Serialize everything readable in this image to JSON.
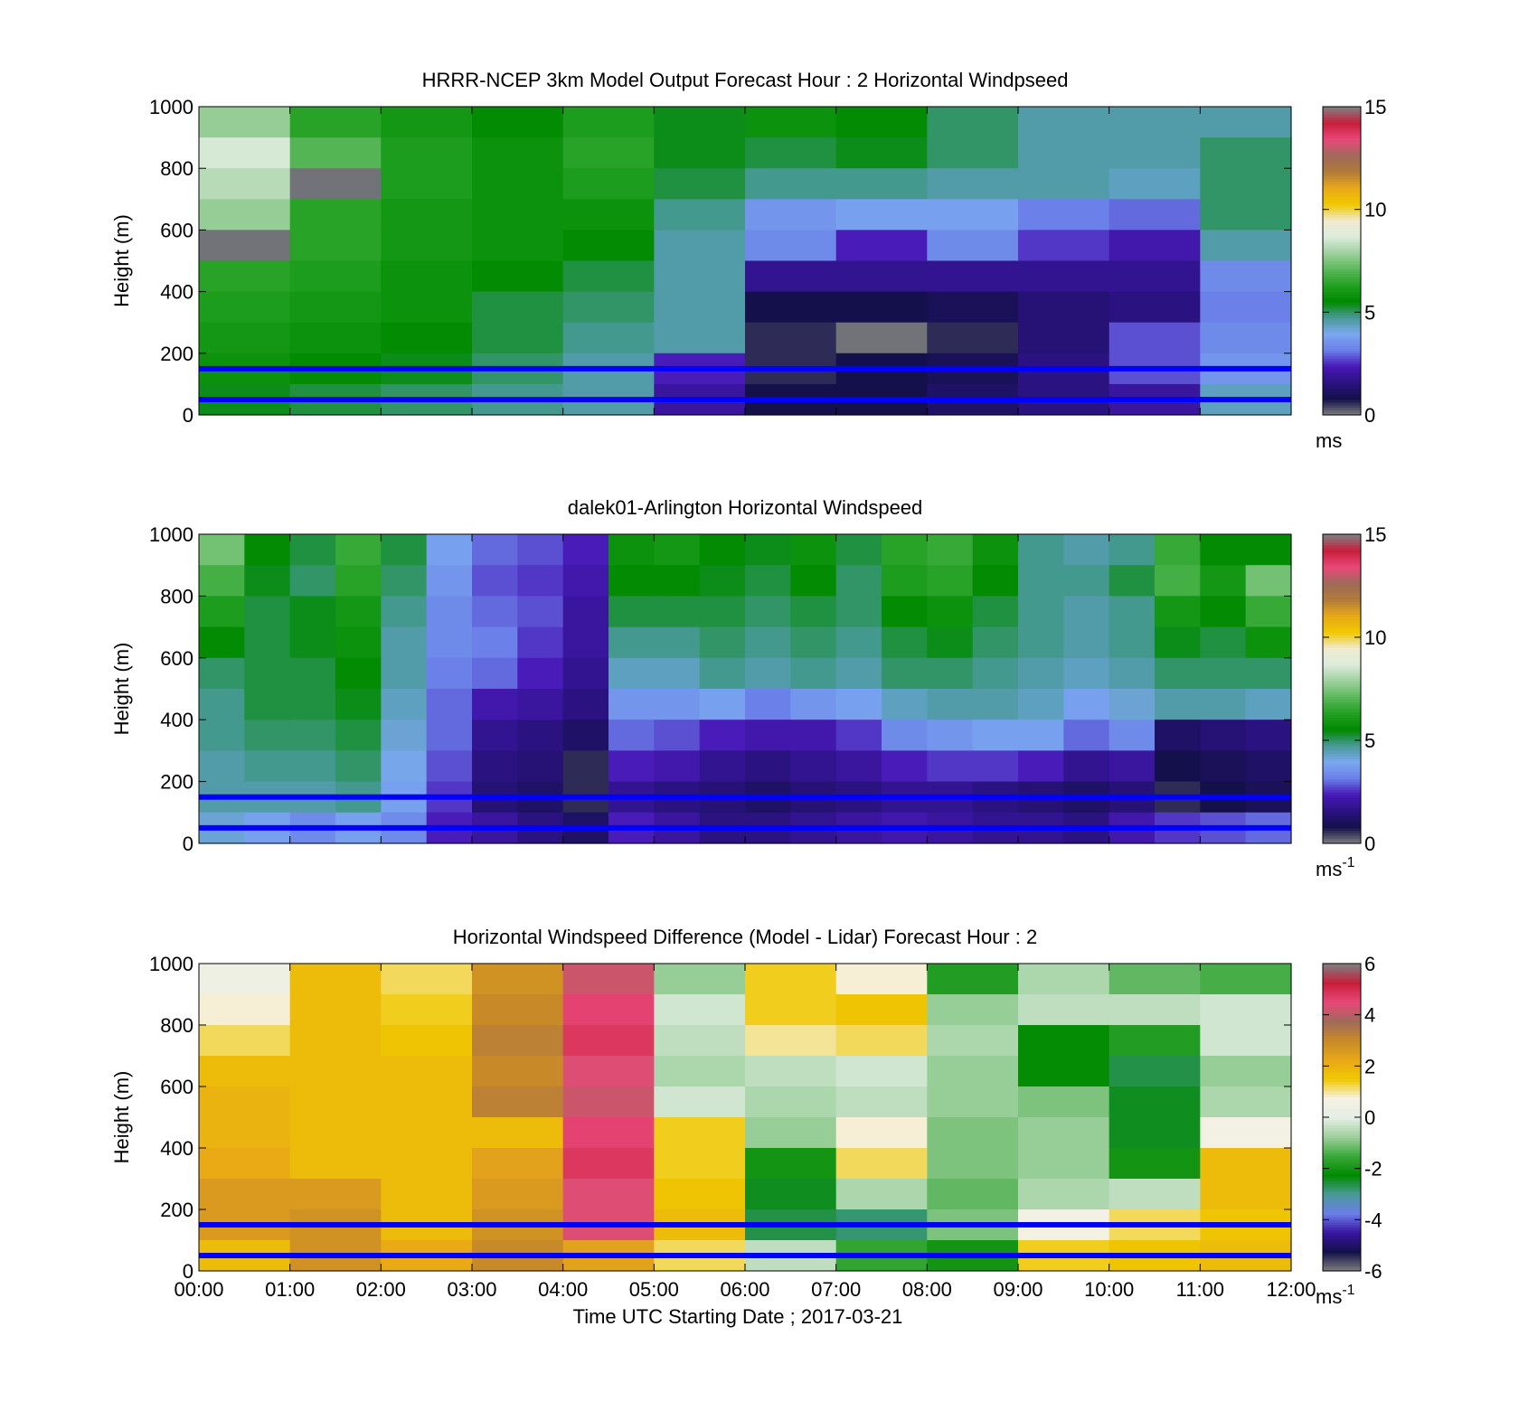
{
  "colors": {
    "speed_scale": [
      "#808080",
      "#14104a",
      "#2a1280",
      "#4818b8",
      "#6a7ee8",
      "#7aa8f0",
      "#4a9a9a",
      "#008a00",
      "#22a022",
      "#5ab85a",
      "#9ed09e",
      "#dcecdc",
      "#f0ead0",
      "#f0c800",
      "#e8a818",
      "#b07a3a",
      "#a06a5a",
      "#e84878",
      "#c81e3a",
      "#808080"
    ],
    "diff_scale": [
      "#808080",
      "#14104a",
      "#3a14a0",
      "#6a7ee8",
      "#4a9a9a",
      "#008a00",
      "#3aa83a",
      "#9ed09e",
      "#e4eee4",
      "#f6f2e4",
      "#f0c800",
      "#e8a818",
      "#c88a28",
      "#a06a5a",
      "#e84878",
      "#c81e3a",
      "#808080"
    ],
    "reference_line": "#0000ff"
  },
  "chart_data": [
    {
      "type": "heatmap",
      "title": "HRRR-NCEP 3km Model Output   Forecast Hour : 2 Horizontal Windpseed",
      "xlabel": "",
      "ylabel": "Height (m)",
      "xlim": [
        "00:00",
        "12:00"
      ],
      "ylim": [
        0,
        1000
      ],
      "yticks": [
        "0",
        "200",
        "400",
        "600",
        "800",
        "1000"
      ],
      "xticks": [],
      "colorbar": {
        "min": 0,
        "max": 15,
        "ticks": [
          "0",
          "5",
          "10",
          "15"
        ],
        "unit": "ms",
        "unit_sup": ""
      },
      "reference_lines_m": [
        150,
        50
      ],
      "grid": false,
      "x_hours": [
        0,
        1,
        2,
        3,
        4,
        5,
        6,
        7,
        8,
        9,
        10,
        11
      ],
      "heights_m": [
        1000,
        900,
        800,
        700,
        600,
        500,
        400,
        300,
        200,
        100,
        0
      ],
      "values": [
        [
          7.8,
          6.4,
          6.0,
          5.6,
          6.2,
          5.4,
          5.8,
          5.6,
          5.0,
          4.6,
          4.6,
          4.6
        ],
        [
          8.6,
          7.0,
          6.2,
          5.8,
          6.4,
          5.4,
          5.2,
          5.4,
          5.0,
          4.6,
          4.6,
          5.0
        ],
        [
          8.2,
          0.1,
          6.2,
          5.8,
          6.2,
          5.2,
          4.8,
          4.8,
          4.6,
          4.6,
          4.4,
          5.0
        ],
        [
          7.8,
          6.4,
          6.0,
          5.8,
          5.8,
          4.8,
          3.6,
          3.8,
          3.8,
          3.2,
          3.0,
          5.0
        ],
        [
          0.1,
          6.4,
          6.0,
          5.8,
          5.6,
          4.6,
          3.4,
          2.4,
          3.4,
          2.6,
          2.2,
          4.6
        ],
        [
          6.4,
          6.2,
          5.8,
          5.6,
          5.2,
          4.6,
          1.8,
          1.8,
          1.8,
          1.8,
          1.8,
          3.4
        ],
        [
          6.2,
          6.0,
          5.8,
          5.2,
          5.0,
          4.6,
          0.8,
          0.8,
          1.0,
          1.4,
          1.6,
          3.2
        ],
        [
          6.0,
          5.8,
          5.6,
          5.2,
          4.8,
          4.6,
          0.6,
          0.1,
          0.6,
          1.4,
          2.8,
          3.4
        ],
        [
          5.8,
          5.6,
          5.4,
          5.0,
          4.6,
          2.4,
          0.6,
          0.8,
          1.0,
          1.6,
          2.8,
          3.6
        ],
        [
          5.4,
          5.2,
          5.0,
          4.8,
          4.6,
          2.0,
          0.8,
          0.8,
          1.2,
          1.6,
          2.0,
          4.4
        ]
      ]
    },
    {
      "type": "heatmap",
      "title": "dalek01-Arlington  Horizontal Windspeed",
      "xlabel": "",
      "ylabel": "Height (m)",
      "xlim": [
        "00:00",
        "12:00"
      ],
      "ylim": [
        0,
        1000
      ],
      "yticks": [
        "0",
        "200",
        "400",
        "600",
        "800",
        "1000"
      ],
      "xticks": [],
      "colorbar": {
        "min": 0,
        "max": 15,
        "ticks": [
          "0",
          "5",
          "10",
          "15"
        ],
        "unit": "ms",
        "unit_sup": "-1"
      },
      "reference_lines_m": [
        150,
        50
      ],
      "grid": false,
      "x_hours": [
        0,
        0.5,
        1,
        1.5,
        2,
        2.5,
        3,
        3.5,
        4,
        4.5,
        5,
        5.5,
        6,
        6.5,
        7,
        7.5,
        8,
        8.5,
        9,
        9.5,
        10,
        10.5,
        11,
        11.5
      ],
      "heights_m": [
        1000,
        900,
        800,
        700,
        600,
        500,
        400,
        300,
        200,
        100,
        0
      ],
      "values": [
        [
          7.4,
          5.6,
          5.2,
          6.6,
          5.2,
          3.8,
          3.0,
          2.8,
          2.4,
          5.8,
          6.0,
          5.6,
          5.4,
          5.8,
          5.2,
          6.4,
          6.6,
          5.8,
          4.8,
          4.6,
          4.8,
          6.6,
          5.6,
          5.6
        ],
        [
          6.8,
          5.4,
          5.0,
          6.4,
          5.0,
          3.6,
          2.8,
          2.6,
          2.2,
          5.6,
          5.6,
          5.4,
          5.2,
          5.6,
          5.0,
          6.2,
          6.4,
          5.6,
          4.8,
          4.8,
          5.2,
          6.8,
          6.0,
          7.4
        ],
        [
          6.2,
          5.2,
          5.4,
          6.0,
          4.8,
          3.4,
          3.0,
          2.8,
          2.0,
          5.2,
          5.2,
          5.2,
          5.0,
          5.2,
          5.0,
          5.6,
          5.8,
          5.2,
          4.8,
          4.6,
          4.8,
          6.0,
          5.6,
          6.6
        ],
        [
          5.6,
          5.2,
          5.4,
          5.8,
          4.6,
          3.4,
          3.2,
          2.6,
          2.0,
          4.8,
          4.8,
          5.0,
          4.8,
          5.0,
          4.8,
          5.2,
          5.4,
          5.0,
          4.8,
          4.6,
          4.8,
          5.4,
          5.2,
          5.8
        ],
        [
          5.0,
          5.2,
          5.2,
          5.6,
          4.6,
          3.2,
          3.0,
          2.4,
          1.8,
          4.4,
          4.4,
          4.8,
          4.6,
          4.8,
          4.6,
          5.0,
          5.0,
          4.8,
          4.6,
          4.4,
          4.6,
          5.0,
          5.0,
          5.0
        ],
        [
          4.8,
          5.2,
          5.2,
          5.4,
          4.4,
          3.0,
          2.2,
          2.0,
          1.6,
          3.6,
          3.6,
          3.8,
          3.2,
          3.6,
          3.8,
          4.4,
          4.6,
          4.6,
          4.4,
          3.8,
          4.2,
          4.6,
          4.6,
          4.4
        ],
        [
          4.8,
          5.0,
          5.0,
          5.2,
          4.2,
          3.0,
          1.8,
          1.6,
          1.2,
          3.0,
          2.8,
          2.4,
          2.2,
          2.2,
          2.6,
          3.4,
          3.6,
          3.8,
          3.8,
          3.0,
          3.4,
          1.2,
          1.4,
          1.6
        ],
        [
          4.6,
          4.8,
          4.8,
          5.0,
          4.0,
          2.8,
          1.6,
          1.4,
          0.6,
          2.4,
          2.2,
          1.8,
          1.6,
          1.8,
          2.0,
          2.4,
          2.6,
          2.6,
          2.4,
          1.8,
          2.0,
          0.8,
          1.0,
          1.2
        ],
        [
          4.6,
          4.6,
          4.6,
          4.8,
          3.8,
          2.6,
          1.4,
          1.2,
          0.6,
          1.8,
          1.6,
          1.4,
          1.2,
          1.4,
          1.6,
          1.8,
          1.8,
          1.6,
          1.4,
          1.2,
          1.4,
          0.6,
          0.8,
          1.0
        ],
        [
          4.2,
          3.8,
          3.4,
          3.8,
          3.4,
          2.4,
          2.0,
          1.6,
          1.2,
          2.4,
          2.0,
          1.6,
          1.6,
          1.8,
          2.0,
          2.2,
          2.0,
          1.8,
          1.8,
          1.6,
          2.2,
          2.6,
          2.8,
          3.0
        ]
      ]
    },
    {
      "type": "heatmap",
      "title": "Horizontal Windspeed Difference (Model - Lidar) Forecast Hour : 2",
      "xlabel": "Time UTC  Starting Date ; 2017-03-21",
      "ylabel": "Height (m)",
      "xlim": [
        "00:00",
        "12:00"
      ],
      "ylim": [
        0,
        1000
      ],
      "yticks": [
        "0",
        "200",
        "400",
        "600",
        "800",
        "1000"
      ],
      "xticks": [
        "00:00",
        "01:00",
        "02:00",
        "03:00",
        "04:00",
        "05:00",
        "06:00",
        "07:00",
        "08:00",
        "09:00",
        "10:00",
        "11:00",
        "12:00"
      ],
      "colorbar": {
        "min": -6,
        "max": 6,
        "ticks": [
          "-6",
          "-4",
          "-2",
          "0",
          "2",
          "4",
          "6"
        ],
        "unit": "ms",
        "unit_sup": "-1"
      },
      "reference_lines_m": [
        150,
        50
      ],
      "grid": false,
      "x_hours": [
        0,
        1,
        2,
        3,
        4,
        5,
        6,
        7,
        8,
        9,
        10,
        11
      ],
      "heights_m": [
        1000,
        900,
        800,
        700,
        600,
        500,
        400,
        300,
        200,
        100,
        0
      ],
      "values": [
        [
          0.4,
          1.8,
          1.2,
          2.8,
          4.2,
          -0.8,
          1.4,
          0.8,
          -1.8,
          -0.6,
          -1.2,
          -1.4
        ],
        [
          0.8,
          1.8,
          1.4,
          3.0,
          4.6,
          -0.2,
          1.4,
          1.6,
          -0.8,
          -0.4,
          -0.4,
          -0.2
        ],
        [
          1.2,
          1.8,
          1.6,
          3.2,
          4.8,
          -0.4,
          1.0,
          1.2,
          -0.6,
          -2.2,
          -1.8,
          -0.2
        ],
        [
          1.8,
          1.8,
          1.8,
          3.0,
          4.4,
          -0.6,
          -0.4,
          -0.2,
          -0.8,
          -2.2,
          -2.6,
          -0.8
        ],
        [
          2.0,
          1.8,
          1.8,
          3.2,
          4.2,
          -0.2,
          -0.6,
          -0.4,
          -0.8,
          -1.0,
          -2.4,
          -0.6
        ],
        [
          2.0,
          1.8,
          1.8,
          1.8,
          4.6,
          1.4,
          -0.8,
          0.8,
          -1.0,
          -0.8,
          -2.4,
          0.6
        ],
        [
          2.2,
          1.8,
          1.8,
          2.4,
          4.8,
          1.4,
          -2.0,
          1.2,
          -1.0,
          -0.8,
          -2.0,
          1.8
        ],
        [
          2.6,
          2.6,
          1.8,
          2.6,
          4.4,
          1.6,
          -2.4,
          -0.6,
          -1.2,
          -0.6,
          -0.4,
          1.8
        ],
        [
          2.6,
          2.8,
          1.8,
          2.8,
          4.4,
          1.8,
          -2.6,
          -2.8,
          -1.0,
          0.6,
          1.2,
          1.6
        ],
        [
          1.8,
          2.8,
          2.2,
          3.0,
          2.4,
          1.2,
          -0.4,
          -1.6,
          -2.0,
          1.4,
          1.6,
          1.8
        ]
      ]
    }
  ]
}
